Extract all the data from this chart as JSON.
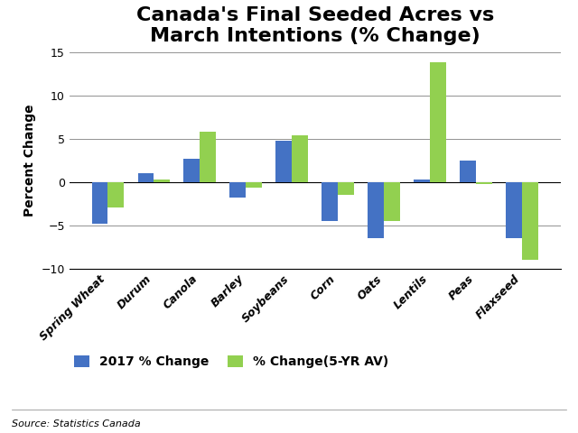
{
  "title": "Canada's Final Seeded Acres vs\nMarch Intentions (% Change)",
  "categories": [
    "Spring Wheat",
    "Durum",
    "Canola",
    "Barley",
    "Soybeans",
    "Corn",
    "Oats",
    "Lentils",
    "Peas",
    "Flaxseed"
  ],
  "values_2017": [
    -4.8,
    1.0,
    2.7,
    -1.8,
    4.7,
    -4.5,
    -6.5,
    0.3,
    2.5,
    -6.5
  ],
  "values_5yr": [
    -3.0,
    0.3,
    5.8,
    -0.7,
    5.4,
    -1.5,
    -4.5,
    13.8,
    -0.2,
    -9.0
  ],
  "bar_color_2017": "#4472C4",
  "bar_color_5yr": "#92D050",
  "ylabel": "Percent Change",
  "ylim": [
    -10,
    15
  ],
  "yticks": [
    -10,
    -5,
    0,
    5,
    10,
    15
  ],
  "legend_2017": "2017 % Change",
  "legend_5yr": "% Change(5-YR AV)",
  "source": "Source: Statistics Canada",
  "background_color": "#FFFFFF",
  "title_fontsize": 16,
  "axis_fontsize": 10,
  "tick_fontsize": 9,
  "legend_fontsize": 10,
  "source_fontsize": 8
}
